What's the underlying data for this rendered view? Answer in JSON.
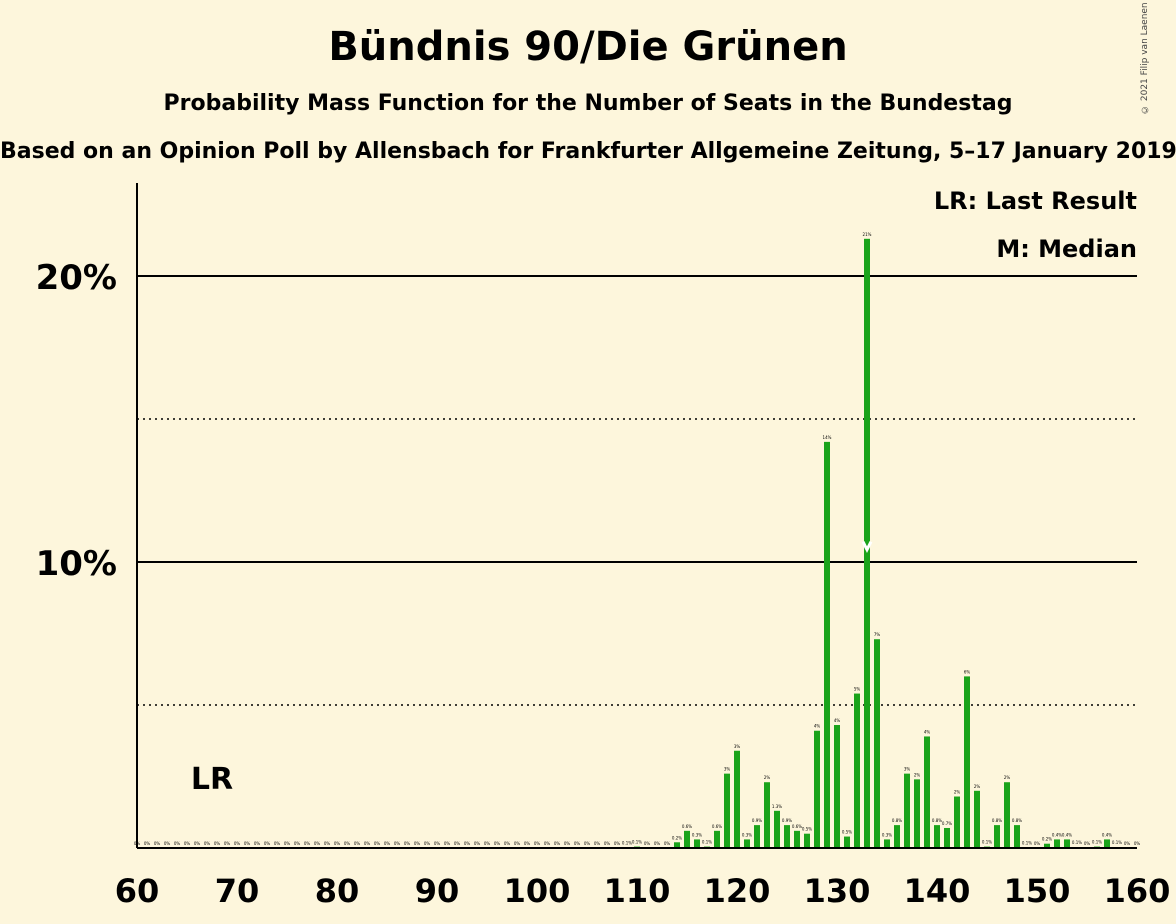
{
  "title": "Bündnis 90/Die Grünen",
  "subtitle": "Probability Mass Function for the Number of Seats in the Bundestag",
  "subtitle2": "Based on an Opinion Poll by Allensbach for Frankfurter Allgemeine Zeitung, 5–17 January 2019",
  "copyright": "© 2021 Filip van Laenen",
  "colors": {
    "background": "#fdf6dc",
    "bar": "#1aa31a",
    "axis": "#000000"
  },
  "chart_data": {
    "type": "bar",
    "xlim": [
      60,
      160
    ],
    "ylim": [
      0,
      22
    ],
    "x_ticks": [
      60,
      70,
      80,
      90,
      100,
      110,
      120,
      130,
      140,
      150,
      160
    ],
    "y_ticks_labeled": [
      {
        "value": 10,
        "label": "10%"
      },
      {
        "value": 20,
        "label": "20%"
      }
    ],
    "y_gridlines_dotted": [
      5,
      15
    ],
    "legend": [
      "LR: Last Result",
      "M: Median"
    ],
    "last_result": {
      "seat": 67,
      "label": "LR"
    },
    "median": {
      "seat": 133,
      "label": "M"
    },
    "bars": [
      {
        "seat": 60,
        "value": 0,
        "label": "0%"
      },
      {
        "seat": 61,
        "value": 0,
        "label": "0%"
      },
      {
        "seat": 62,
        "value": 0,
        "label": "0%"
      },
      {
        "seat": 63,
        "value": 0,
        "label": "0%"
      },
      {
        "seat": 64,
        "value": 0,
        "label": "0%"
      },
      {
        "seat": 65,
        "value": 0,
        "label": "0%"
      },
      {
        "seat": 66,
        "value": 0,
        "label": "0%"
      },
      {
        "seat": 67,
        "value": 0,
        "label": "0%"
      },
      {
        "seat": 68,
        "value": 0,
        "label": "0%"
      },
      {
        "seat": 69,
        "value": 0,
        "label": "0%"
      },
      {
        "seat": 70,
        "value": 0,
        "label": "0%"
      },
      {
        "seat": 71,
        "value": 0,
        "label": "0%"
      },
      {
        "seat": 72,
        "value": 0,
        "label": "0%"
      },
      {
        "seat": 73,
        "value": 0,
        "label": "0%"
      },
      {
        "seat": 74,
        "value": 0,
        "label": "0%"
      },
      {
        "seat": 75,
        "value": 0,
        "label": "0%"
      },
      {
        "seat": 76,
        "value": 0,
        "label": "0%"
      },
      {
        "seat": 77,
        "value": 0,
        "label": "0%"
      },
      {
        "seat": 78,
        "value": 0,
        "label": "0%"
      },
      {
        "seat": 79,
        "value": 0,
        "label": "0%"
      },
      {
        "seat": 80,
        "value": 0,
        "label": "0%"
      },
      {
        "seat": 81,
        "value": 0,
        "label": "0%"
      },
      {
        "seat": 82,
        "value": 0,
        "label": "0%"
      },
      {
        "seat": 83,
        "value": 0,
        "label": "0%"
      },
      {
        "seat": 84,
        "value": 0,
        "label": "0%"
      },
      {
        "seat": 85,
        "value": 0,
        "label": "0%"
      },
      {
        "seat": 86,
        "value": 0,
        "label": "0%"
      },
      {
        "seat": 87,
        "value": 0,
        "label": "0%"
      },
      {
        "seat": 88,
        "value": 0,
        "label": "0%"
      },
      {
        "seat": 89,
        "value": 0,
        "label": "0%"
      },
      {
        "seat": 90,
        "value": 0,
        "label": "0%"
      },
      {
        "seat": 91,
        "value": 0,
        "label": "0%"
      },
      {
        "seat": 92,
        "value": 0,
        "label": "0%"
      },
      {
        "seat": 93,
        "value": 0,
        "label": "0%"
      },
      {
        "seat": 94,
        "value": 0,
        "label": "0%"
      },
      {
        "seat": 95,
        "value": 0,
        "label": "0%"
      },
      {
        "seat": 96,
        "value": 0,
        "label": "0%"
      },
      {
        "seat": 97,
        "value": 0,
        "label": "0%"
      },
      {
        "seat": 98,
        "value": 0,
        "label": "0%"
      },
      {
        "seat": 99,
        "value": 0,
        "label": "0%"
      },
      {
        "seat": 100,
        "value": 0,
        "label": "0%"
      },
      {
        "seat": 101,
        "value": 0,
        "label": "0%"
      },
      {
        "seat": 102,
        "value": 0,
        "label": "0%"
      },
      {
        "seat": 103,
        "value": 0,
        "label": "0%"
      },
      {
        "seat": 104,
        "value": 0,
        "label": "0%"
      },
      {
        "seat": 105,
        "value": 0,
        "label": "0%"
      },
      {
        "seat": 106,
        "value": 0,
        "label": "0%"
      },
      {
        "seat": 107,
        "value": 0,
        "label": "0%"
      },
      {
        "seat": 108,
        "value": 0,
        "label": "0%"
      },
      {
        "seat": 109,
        "value": 0.02,
        "label": "0.1%"
      },
      {
        "seat": 110,
        "value": 0.05,
        "label": "0.1%"
      },
      {
        "seat": 111,
        "value": 0,
        "label": "0%"
      },
      {
        "seat": 112,
        "value": 0,
        "label": "0%"
      },
      {
        "seat": 113,
        "value": 0,
        "label": "0%"
      },
      {
        "seat": 114,
        "value": 0.2,
        "label": "0.2%"
      },
      {
        "seat": 115,
        "value": 0.6,
        "label": "0.6%"
      },
      {
        "seat": 116,
        "value": 0.3,
        "label": "0.3%"
      },
      {
        "seat": 117,
        "value": 0.05,
        "label": "0.1%"
      },
      {
        "seat": 118,
        "value": 0.6,
        "label": "0.6%"
      },
      {
        "seat": 119,
        "value": 2.6,
        "label": "3%"
      },
      {
        "seat": 120,
        "value": 3.4,
        "label": "3%"
      },
      {
        "seat": 121,
        "value": 0.3,
        "label": "0.3%"
      },
      {
        "seat": 122,
        "value": 0.8,
        "label": "0.9%"
      },
      {
        "seat": 123,
        "value": 2.3,
        "label": "2%"
      },
      {
        "seat": 124,
        "value": 1.3,
        "label": "1.3%"
      },
      {
        "seat": 125,
        "value": 0.8,
        "label": "0.9%"
      },
      {
        "seat": 126,
        "value": 0.6,
        "label": "0.6%"
      },
      {
        "seat": 127,
        "value": 0.5,
        "label": "0.5%"
      },
      {
        "seat": 128,
        "value": 4.1,
        "label": "4%"
      },
      {
        "seat": 129,
        "value": 14.2,
        "label": "14%"
      },
      {
        "seat": 130,
        "value": 4.3,
        "label": "4%"
      },
      {
        "seat": 131,
        "value": 0.4,
        "label": "0.5%"
      },
      {
        "seat": 132,
        "value": 5.4,
        "label": "5%"
      },
      {
        "seat": 133,
        "value": 21.3,
        "label": "21%"
      },
      {
        "seat": 134,
        "value": 7.3,
        "label": "7%"
      },
      {
        "seat": 135,
        "value": 0.3,
        "label": "0.3%"
      },
      {
        "seat": 136,
        "value": 0.8,
        "label": "0.8%"
      },
      {
        "seat": 137,
        "value": 2.6,
        "label": "3%"
      },
      {
        "seat": 138,
        "value": 2.4,
        "label": "2%"
      },
      {
        "seat": 139,
        "value": 3.9,
        "label": "4%"
      },
      {
        "seat": 140,
        "value": 0.8,
        "label": "0.8%"
      },
      {
        "seat": 141,
        "value": 0.7,
        "label": "0.7%"
      },
      {
        "seat": 142,
        "value": 1.8,
        "label": "2%"
      },
      {
        "seat": 143,
        "value": 6.0,
        "label": "6%"
      },
      {
        "seat": 144,
        "value": 2.0,
        "label": "2%"
      },
      {
        "seat": 145,
        "value": 0.05,
        "label": "0.1%"
      },
      {
        "seat": 146,
        "value": 0.8,
        "label": "0.8%"
      },
      {
        "seat": 147,
        "value": 2.3,
        "label": "2%"
      },
      {
        "seat": 148,
        "value": 0.8,
        "label": "0.8%"
      },
      {
        "seat": 149,
        "value": 0.02,
        "label": "0.1%"
      },
      {
        "seat": 150,
        "value": 0,
        "label": "0%"
      },
      {
        "seat": 151,
        "value": 0.15,
        "label": "0.2%"
      },
      {
        "seat": 152,
        "value": 0.3,
        "label": "0.4%"
      },
      {
        "seat": 153,
        "value": 0.3,
        "label": "0.4%"
      },
      {
        "seat": 154,
        "value": 0.03,
        "label": "0.1%"
      },
      {
        "seat": 155,
        "value": 0,
        "label": "0%"
      },
      {
        "seat": 156,
        "value": 0.05,
        "label": "0.1%"
      },
      {
        "seat": 157,
        "value": 0.3,
        "label": "0.4%"
      },
      {
        "seat": 158,
        "value": 0.03,
        "label": "0.1%"
      },
      {
        "seat": 159,
        "value": 0,
        "label": "0%"
      },
      {
        "seat": 160,
        "value": 0,
        "label": "0%"
      }
    ]
  }
}
